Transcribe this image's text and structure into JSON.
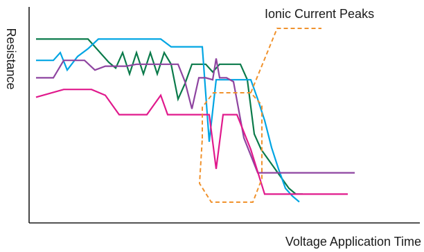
{
  "chart_data": {
    "type": "line",
    "title": "",
    "xlabel": "Voltage Application Time",
    "ylabel": "Resistance",
    "xlim": [
      0,
      100
    ],
    "ylim": [
      0,
      100
    ],
    "grid": false,
    "ticks": false,
    "series": [
      {
        "color": "#0a7a4a",
        "x": [
          0,
          15,
          21,
          23,
          25,
          27,
          29,
          31,
          33,
          35,
          37,
          39,
          41,
          43,
          45,
          47,
          49,
          51,
          53,
          55,
          57,
          59,
          61,
          63,
          65,
          67,
          69,
          71,
          73,
          75,
          77
        ],
        "y": [
          87,
          87,
          75,
          72,
          80,
          69,
          80,
          69,
          80,
          69,
          80,
          74,
          56,
          64,
          74,
          74,
          74,
          70,
          74,
          74,
          74,
          74,
          66,
          38,
          30,
          25,
          20,
          15,
          10,
          7,
          7
        ]
      },
      {
        "color": "#00a5e3",
        "x": [
          0,
          5,
          7,
          9,
          12,
          15,
          18,
          21,
          24,
          27,
          30,
          33,
          36,
          39,
          42,
          45,
          48,
          50,
          52,
          54,
          56,
          58,
          60,
          62,
          64,
          66,
          68,
          70,
          72,
          74,
          76
        ],
        "y": [
          76,
          76,
          80,
          71,
          78,
          82,
          87,
          87,
          87,
          87,
          87,
          87,
          87,
          83,
          83,
          83,
          83,
          34,
          66,
          66,
          66,
          66,
          66,
          66,
          56,
          45,
          31,
          20,
          10,
          6,
          3
        ]
      },
      {
        "color": "#8e44a0",
        "x": [
          0,
          5,
          8,
          11,
          14,
          17,
          20,
          23,
          26,
          29,
          32,
          35,
          38,
          41,
          43,
          45,
          47,
          49,
          51,
          52,
          53,
          55,
          57,
          60,
          64,
          68,
          72,
          76,
          80,
          84,
          88,
          92
        ],
        "y": [
          67,
          67,
          76,
          76,
          76,
          71,
          73,
          73,
          73,
          74,
          74,
          74,
          74,
          74,
          65,
          51,
          67,
          67,
          66,
          77,
          67,
          67,
          65,
          36,
          18,
          18,
          18,
          18,
          18,
          18,
          18,
          18
        ]
      },
      {
        "color": "#e0198c",
        "x": [
          0,
          8,
          12,
          16,
          20,
          24,
          28,
          32,
          36,
          38,
          42,
          46,
          50,
          52,
          54,
          58,
          62,
          66,
          70,
          74,
          78,
          82,
          86,
          90
        ],
        "y": [
          57,
          61,
          61,
          61,
          58,
          48,
          48,
          48,
          58,
          48,
          48,
          48,
          48,
          20,
          48,
          48,
          30,
          7,
          7,
          7,
          7,
          7,
          7,
          7
        ]
      }
    ],
    "annotations": [
      {
        "text": "Ionic Current Peaks",
        "color": "#f0922d"
      }
    ]
  }
}
